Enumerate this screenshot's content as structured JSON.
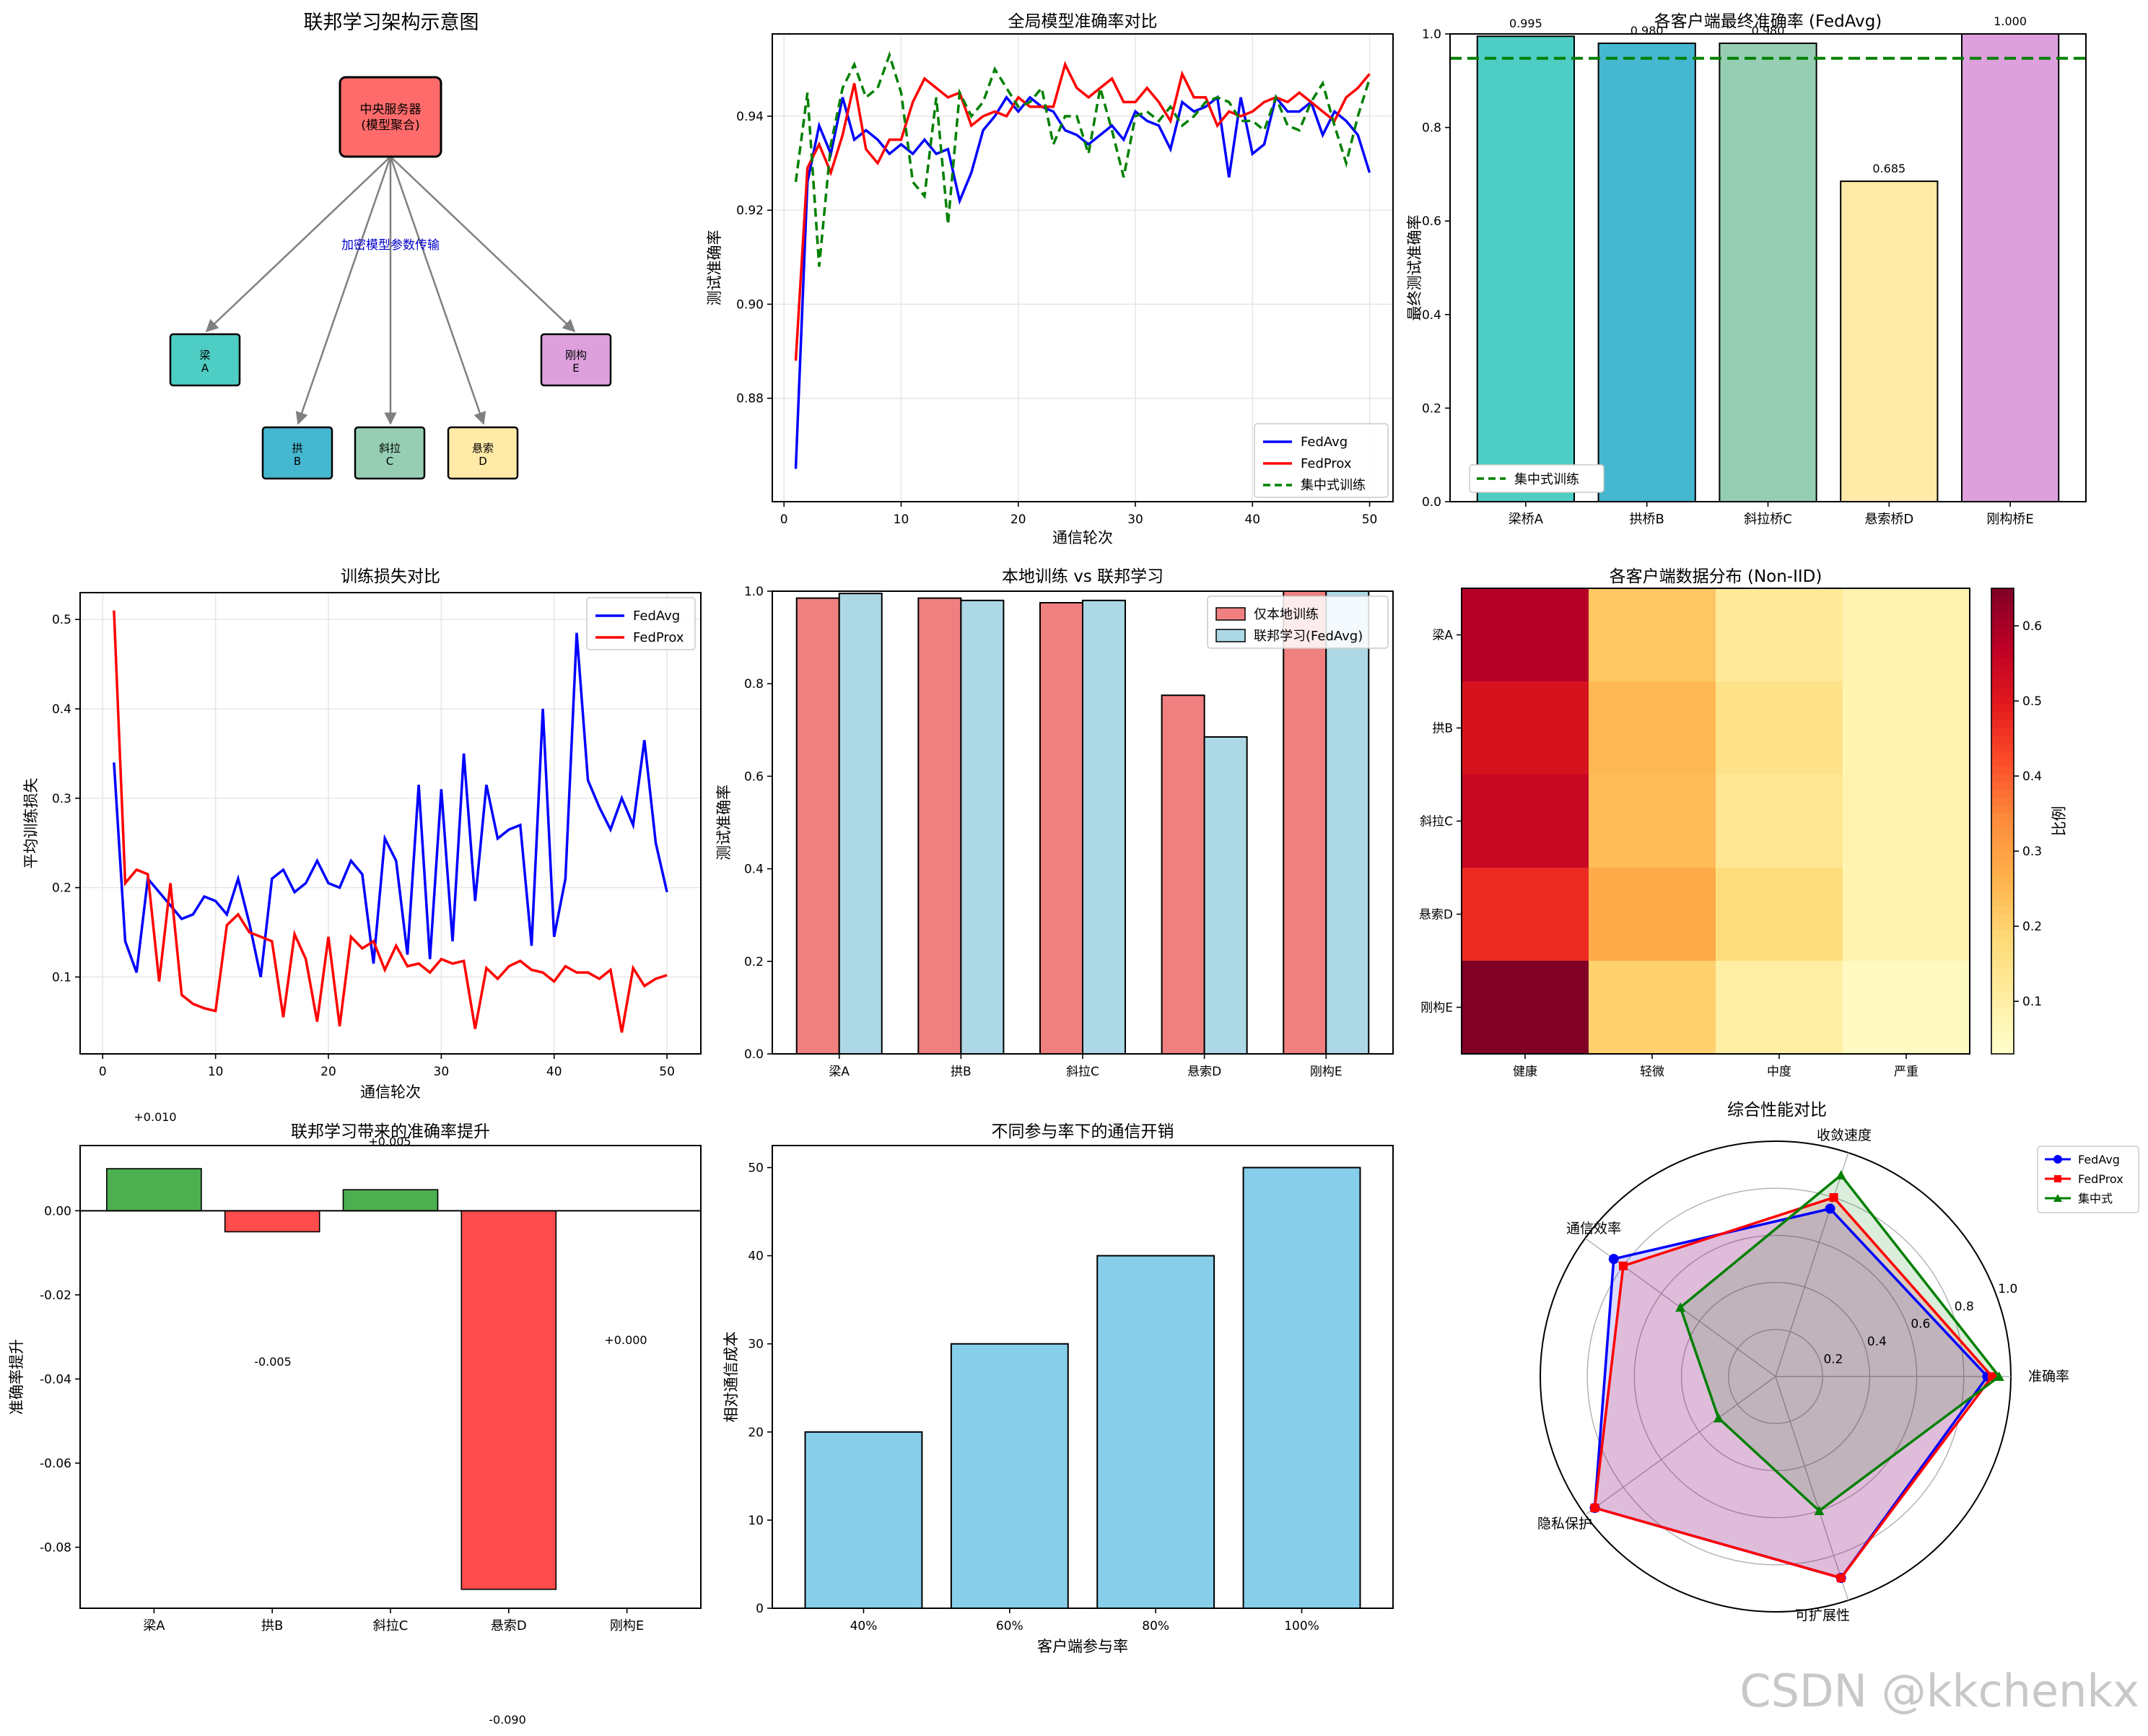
{
  "watermark": "CSDN @kkchenkx",
  "diagram": {
    "title": "联邦学习架构示意图",
    "server_line1": "中央服务器",
    "server_line2": "(模型聚合)",
    "edge_label": "加密模型参数传输",
    "server_color": "#ff6b6b",
    "clients": [
      {
        "line1": "梁",
        "line2": "A",
        "color": "#4ecdc4"
      },
      {
        "line1": "拱",
        "line2": "B",
        "color": "#45b7d1"
      },
      {
        "line1": "斜拉",
        "line2": "C",
        "color": "#96ceb4"
      },
      {
        "line1": "悬索",
        "line2": "D",
        "color": "#ffeaa7"
      },
      {
        "line1": "刚构",
        "line2": "E",
        "color": "#dda0dd"
      }
    ]
  },
  "chart_data": [
    {
      "id": "global_acc",
      "type": "line",
      "title": "全局模型准确率对比",
      "xlabel": "通信轮次",
      "ylabel": "测试准确率",
      "xlim": [
        -1,
        52
      ],
      "ylim": [
        0.858,
        0.9575
      ],
      "xticks": [
        0,
        10,
        20,
        30,
        40,
        50
      ],
      "yticks": [
        0.88,
        0.9,
        0.92,
        0.94
      ],
      "grid": true,
      "legend": "lower-right",
      "x": [
        1,
        2,
        3,
        4,
        5,
        6,
        7,
        8,
        9,
        10,
        11,
        12,
        13,
        14,
        15,
        16,
        17,
        18,
        19,
        20,
        21,
        22,
        23,
        24,
        25,
        26,
        27,
        28,
        29,
        30,
        31,
        32,
        33,
        34,
        35,
        36,
        37,
        38,
        39,
        40,
        41,
        42,
        43,
        44,
        45,
        46,
        47,
        48,
        49,
        50
      ],
      "series": [
        {
          "name": "FedAvg",
          "color": "#0000ff",
          "dash": false,
          "values": [
            0.865,
            0.926,
            0.938,
            0.932,
            0.944,
            0.935,
            0.937,
            0.935,
            0.932,
            0.934,
            0.932,
            0.935,
            0.932,
            0.933,
            0.922,
            0.928,
            0.937,
            0.94,
            0.944,
            0.941,
            0.944,
            0.942,
            0.941,
            0.937,
            0.936,
            0.934,
            0.936,
            0.938,
            0.935,
            0.941,
            0.939,
            0.938,
            0.933,
            0.943,
            0.941,
            0.942,
            0.944,
            0.927,
            0.944,
            0.932,
            0.934,
            0.944,
            0.941,
            0.941,
            0.943,
            0.936,
            0.941,
            0.939,
            0.936,
            0.928
          ]
        },
        {
          "name": "FedProx",
          "color": "#ff0000",
          "dash": false,
          "values": [
            0.888,
            0.929,
            0.934,
            0.928,
            0.936,
            0.947,
            0.933,
            0.93,
            0.935,
            0.935,
            0.943,
            0.948,
            0.946,
            0.944,
            0.945,
            0.938,
            0.94,
            0.941,
            0.94,
            0.944,
            0.942,
            0.942,
            0.942,
            0.951,
            0.946,
            0.944,
            0.946,
            0.948,
            0.943,
            0.943,
            0.946,
            0.943,
            0.939,
            0.949,
            0.944,
            0.944,
            0.938,
            0.941,
            0.94,
            0.941,
            0.943,
            0.944,
            0.943,
            0.945,
            0.943,
            0.941,
            0.939,
            0.944,
            0.946,
            0.949
          ]
        },
        {
          "name": "集中式训练",
          "color": "#008000",
          "dash": true,
          "values": [
            0.926,
            0.945,
            0.908,
            0.934,
            0.946,
            0.951,
            0.944,
            0.946,
            0.953,
            0.945,
            0.926,
            0.923,
            0.944,
            0.917,
            0.945,
            0.94,
            0.943,
            0.95,
            0.946,
            0.942,
            0.943,
            0.946,
            0.934,
            0.94,
            0.94,
            0.932,
            0.946,
            0.937,
            0.927,
            0.94,
            0.941,
            0.939,
            0.942,
            0.938,
            0.94,
            0.943,
            0.944,
            0.943,
            0.939,
            0.939,
            0.937,
            0.944,
            0.938,
            0.937,
            0.943,
            0.947,
            0.938,
            0.93,
            0.94,
            0.948
          ]
        }
      ]
    },
    {
      "id": "final_acc",
      "type": "bar",
      "title": "各客户端最终准确率 (FedAvg)",
      "ylabel": "最终测试准确率",
      "ylim": [
        0,
        1
      ],
      "yticks": [
        0.0,
        0.2,
        0.4,
        0.6,
        0.8,
        1.0
      ],
      "categories": [
        "梁桥A",
        "拱桥B",
        "斜拉桥C",
        "悬索桥D",
        "刚构桥E"
      ],
      "values": [
        0.995,
        0.98,
        0.98,
        0.685,
        1.0
      ],
      "value_labels": [
        "0.995",
        "0.980",
        "0.980",
        "0.685",
        "1.000"
      ],
      "colors": [
        "#4ecdc4",
        "#45b7d1",
        "#96ceb4",
        "#ffeaa7",
        "#dda0dd"
      ],
      "reference_line": {
        "name": "集中式训练",
        "value": 0.948,
        "color": "#008000"
      },
      "legend": "lower-left"
    },
    {
      "id": "loss",
      "type": "line",
      "title": "训练损失对比",
      "xlabel": "通信轮次",
      "ylabel": "平均训练损失",
      "xlim": [
        -2,
        53
      ],
      "ylim": [
        0.014,
        0.53
      ],
      "xticks": [
        0,
        10,
        20,
        30,
        40,
        50
      ],
      "yticks": [
        0.1,
        0.2,
        0.3,
        0.4,
        0.5
      ],
      "grid": true,
      "legend": "upper-right",
      "x": [
        1,
        2,
        3,
        4,
        5,
        6,
        7,
        8,
        9,
        10,
        11,
        12,
        13,
        14,
        15,
        16,
        17,
        18,
        19,
        20,
        21,
        22,
        23,
        24,
        25,
        26,
        27,
        28,
        29,
        30,
        31,
        32,
        33,
        34,
        35,
        36,
        37,
        38,
        39,
        40,
        41,
        42,
        43,
        44,
        45,
        46,
        47,
        48,
        49,
        50
      ],
      "series": [
        {
          "name": "FedAvg",
          "color": "#0000ff",
          "values": [
            0.34,
            0.14,
            0.105,
            0.21,
            0.195,
            0.18,
            0.165,
            0.17,
            0.19,
            0.185,
            0.17,
            0.21,
            0.16,
            0.1,
            0.21,
            0.22,
            0.195,
            0.205,
            0.23,
            0.205,
            0.2,
            0.23,
            0.215,
            0.115,
            0.255,
            0.23,
            0.125,
            0.315,
            0.12,
            0.31,
            0.14,
            0.35,
            0.185,
            0.315,
            0.255,
            0.265,
            0.27,
            0.135,
            0.4,
            0.145,
            0.21,
            0.485,
            0.32,
            0.29,
            0.265,
            0.3,
            0.27,
            0.365,
            0.25,
            0.195
          ]
        },
        {
          "name": "FedProx",
          "color": "#ff0000",
          "values": [
            0.51,
            0.205,
            0.22,
            0.215,
            0.095,
            0.205,
            0.08,
            0.07,
            0.065,
            0.062,
            0.158,
            0.17,
            0.15,
            0.145,
            0.14,
            0.055,
            0.148,
            0.12,
            0.05,
            0.145,
            0.045,
            0.145,
            0.132,
            0.14,
            0.108,
            0.135,
            0.112,
            0.115,
            0.105,
            0.12,
            0.115,
            0.118,
            0.042,
            0.11,
            0.098,
            0.112,
            0.118,
            0.108,
            0.105,
            0.095,
            0.112,
            0.105,
            0.105,
            0.098,
            0.108,
            0.038,
            0.11,
            0.09,
            0.098,
            0.102
          ]
        }
      ]
    },
    {
      "id": "local_vs_fed",
      "type": "bar",
      "title": "本地训练 vs 联邦学习",
      "ylabel": "测试准确率",
      "ylim": [
        0,
        1
      ],
      "yticks": [
        0.0,
        0.2,
        0.4,
        0.6,
        0.8,
        1.0
      ],
      "categories": [
        "梁A",
        "拱B",
        "斜拉C",
        "悬索D",
        "刚构E"
      ],
      "legend": "upper-right",
      "series": [
        {
          "name": "仅本地训练",
          "color": "#f08080",
          "values": [
            0.985,
            0.985,
            0.975,
            0.775,
            1.0
          ]
        },
        {
          "name": "联邦学习(FedAvg)",
          "color": "#add8e6",
          "values": [
            0.995,
            0.98,
            0.98,
            0.685,
            1.0
          ]
        }
      ]
    },
    {
      "id": "data_dist",
      "type": "heatmap",
      "title": "各客户端数据分布 (Non-IID)",
      "rows": [
        "梁A",
        "拱B",
        "斜拉C",
        "悬索D",
        "刚构E"
      ],
      "cols": [
        "健康",
        "轻微",
        "中度",
        "严重"
      ],
      "values": [
        [
          0.58,
          0.22,
          0.12,
          0.08
        ],
        [
          0.52,
          0.25,
          0.15,
          0.08
        ],
        [
          0.55,
          0.24,
          0.13,
          0.08
        ],
        [
          0.47,
          0.28,
          0.17,
          0.08
        ],
        [
          0.65,
          0.2,
          0.1,
          0.05
        ]
      ],
      "vmin": 0.03,
      "vmax": 0.65,
      "colorbar": {
        "label": "比例",
        "ticks": [
          0.1,
          0.2,
          0.3,
          0.4,
          0.5,
          0.6
        ]
      },
      "colormap": "YlOrRd"
    },
    {
      "id": "improvement",
      "type": "bar",
      "title": "联邦学习带来的准确率提升",
      "ylabel": "准确率提升",
      "ylim": [
        -0.0945,
        0.0155
      ],
      "yticks": [
        0.0,
        -0.02,
        -0.04,
        -0.06,
        -0.08
      ],
      "categories": [
        "梁A",
        "拱B",
        "斜拉C",
        "悬索D",
        "刚构E"
      ],
      "values": [
        0.01,
        -0.005,
        0.005,
        -0.09,
        0.0
      ],
      "value_labels": [
        "+0.010",
        "-0.005",
        "+0.005",
        "-0.090",
        "+0.000"
      ],
      "positive_color": "#4caf50",
      "negative_color": "#ff4c4c"
    },
    {
      "id": "comm_cost",
      "type": "bar",
      "title": "不同参与率下的通信开销",
      "xlabel": "客户端参与率",
      "ylabel": "相对通信成本",
      "ylim": [
        0,
        52.5
      ],
      "yticks": [
        0,
        10,
        20,
        30,
        40,
        50
      ],
      "categories": [
        "40%",
        "60%",
        "80%",
        "100%"
      ],
      "values": [
        20,
        30,
        40,
        50
      ],
      "color": "#87ceeb"
    },
    {
      "id": "radar",
      "type": "radar",
      "title": "综合性能对比",
      "axes": [
        "准确率",
        "收敛速度",
        "通信效率",
        "隐私保护",
        "可扩展性"
      ],
      "rticks": [
        0.2,
        0.4,
        0.6,
        0.8,
        1.0
      ],
      "legend": "upper-right",
      "series": [
        {
          "name": "FedAvg",
          "color": "#0000ff",
          "marker": "circle",
          "values": [
            0.9,
            0.75,
            0.85,
            0.95,
            0.9
          ]
        },
        {
          "name": "FedProx",
          "color": "#ff0000",
          "marker": "square",
          "values": [
            0.92,
            0.8,
            0.8,
            0.95,
            0.9
          ]
        },
        {
          "name": "集中式",
          "color": "#008000",
          "marker": "triangle",
          "values": [
            0.95,
            0.9,
            0.5,
            0.3,
            0.6
          ]
        }
      ]
    }
  ]
}
